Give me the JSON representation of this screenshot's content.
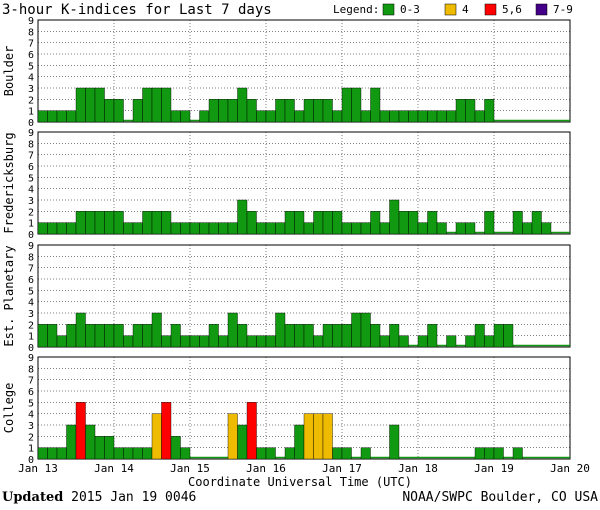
{
  "chart_data": {
    "type": "bar",
    "title": "3-hour K-indices for Last 7 days",
    "legend_label": "Legend:",
    "legend": [
      {
        "label": "0-3",
        "color": "#119911"
      },
      {
        "label": "4",
        "color": "#EEBB00"
      },
      {
        "label": "5,6",
        "color": "#FF0000"
      },
      {
        "label": "7-9",
        "color": "#440088"
      }
    ],
    "ylim": [
      0,
      9
    ],
    "yticks": [
      "0",
      "1",
      "2",
      "3",
      "4",
      "5",
      "6",
      "7",
      "8",
      "9"
    ],
    "xlabel": "Coordinate Universal Time (UTC)",
    "xticks": [
      "Jan 13",
      "Jan 14",
      "Jan 15",
      "Jan 16",
      "Jan 17",
      "Jan 18",
      "Jan 19",
      "Jan 20"
    ],
    "grid": true,
    "panels": [
      {
        "name": "Boulder",
        "values": [
          1,
          1,
          1,
          1,
          3,
          3,
          3,
          2,
          2,
          0,
          2,
          3,
          3,
          3,
          1,
          1,
          0,
          1,
          2,
          2,
          2,
          3,
          2,
          1,
          1,
          2,
          2,
          1,
          2,
          2,
          2,
          1,
          3,
          3,
          1,
          3,
          1,
          1,
          1,
          1,
          1,
          1,
          1,
          1,
          2,
          2,
          1,
          2
        ]
      },
      {
        "name": "Fredericksburg",
        "values": [
          1,
          1,
          1,
          1,
          2,
          2,
          2,
          2,
          2,
          1,
          1,
          2,
          2,
          2,
          1,
          1,
          1,
          1,
          1,
          1,
          1,
          3,
          2,
          1,
          1,
          1,
          2,
          2,
          1,
          2,
          2,
          2,
          1,
          1,
          1,
          2,
          1,
          3,
          2,
          2,
          1,
          2,
          1,
          0,
          1,
          1,
          0,
          2,
          0,
          0,
          2,
          1,
          2,
          1
        ]
      },
      {
        "name": "Est. Planetary",
        "values": [
          2,
          2,
          1,
          2,
          3,
          2,
          2,
          2,
          2,
          1,
          2,
          2,
          3,
          1,
          2,
          1,
          1,
          1,
          2,
          1,
          3,
          2,
          1,
          1,
          1,
          3,
          2,
          2,
          2,
          1,
          2,
          2,
          2,
          3,
          3,
          2,
          1,
          2,
          1,
          0,
          1,
          2,
          0,
          1,
          0,
          1,
          2,
          1,
          2,
          2
        ]
      },
      {
        "name": "College",
        "values": [
          1,
          1,
          1,
          3,
          5,
          3,
          2,
          2,
          1,
          1,
          1,
          1,
          4,
          5,
          2,
          1,
          0,
          0,
          0,
          0,
          4,
          3,
          5,
          1,
          1,
          0,
          1,
          3,
          4,
          4,
          4,
          1,
          1,
          0,
          1,
          0,
          0,
          3,
          0,
          0,
          0,
          0,
          0,
          0,
          0,
          0,
          1,
          1,
          1,
          0,
          1
        ]
      }
    ]
  },
  "footer": {
    "updated_label": "Updated",
    "updated_value": "2015 Jan 19 0046",
    "credit": "NOAA/SWPC Boulder, CO USA"
  }
}
